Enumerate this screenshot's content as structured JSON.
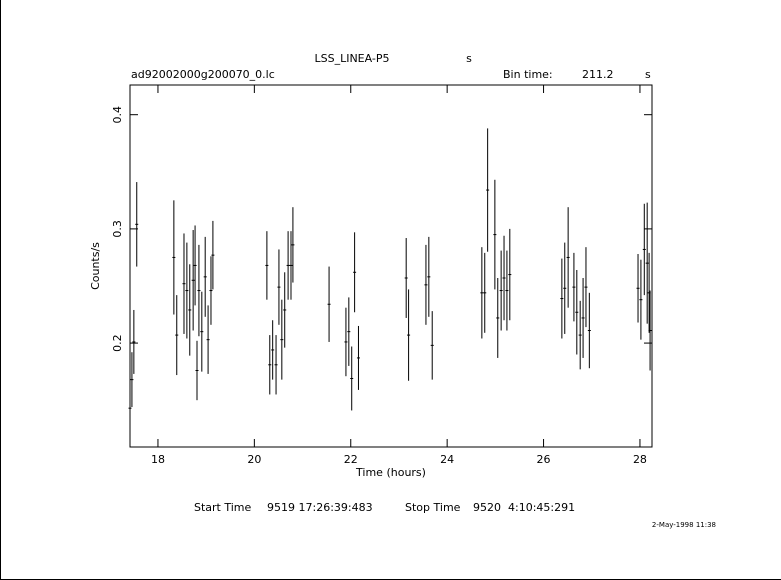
{
  "chart_data": {
    "type": "errorbar",
    "title": "LSS_LINEA-P5",
    "title_unit": "s",
    "file_name": "ad92002000g200070_0.lc",
    "bin_time_label": "Bin time:",
    "bin_time": 211.2,
    "bin_time_unit": "s",
    "xlabel": "Time (hours)",
    "ylabel": "Counts/s",
    "start_label": "Start Time",
    "start_time": "9519 17:26:39:483",
    "stop_label": "Stop Time",
    "stop_time": "9520  4:10:45:291",
    "date": "2-May-1998 11:38",
    "color": "#000000",
    "xlim": [
      17.42,
      28.25
    ],
    "xticks": [
      18,
      20,
      22,
      24,
      26,
      28
    ],
    "ylim": [
      0.109,
      0.426
    ],
    "yticks": [
      0.2,
      0.3,
      0.4
    ],
    "x": [
      17.42,
      17.46,
      17.5,
      17.56,
      18.33,
      18.39,
      18.54,
      18.6,
      18.66,
      18.73,
      18.77,
      18.81,
      18.85,
      18.91,
      18.98,
      19.04,
      19.1,
      19.14,
      20.26,
      20.32,
      20.38,
      20.45,
      20.51,
      20.57,
      20.63,
      20.7,
      20.76,
      20.8,
      21.55,
      21.9,
      21.96,
      22.02,
      22.08,
      22.16,
      23.15,
      23.2,
      23.56,
      23.62,
      23.69,
      24.72,
      24.78,
      24.84,
      24.99,
      25.05,
      25.12,
      25.18,
      25.24,
      25.3,
      26.38,
      26.44,
      26.51,
      26.63,
      26.69,
      26.76,
      26.82,
      26.88,
      26.95,
      27.96,
      28.02,
      28.09,
      28.15,
      28.19,
      28.21
    ],
    "values": [
      0.143,
      0.168,
      0.201,
      0.304,
      0.275,
      0.207,
      0.252,
      0.246,
      0.229,
      0.255,
      0.268,
      0.176,
      0.246,
      0.21,
      0.258,
      0.203,
      0.246,
      0.277,
      0.268,
      0.181,
      0.194,
      0.181,
      0.249,
      0.203,
      0.229,
      0.268,
      0.268,
      0.286,
      0.234,
      0.201,
      0.21,
      0.169,
      0.262,
      0.187,
      0.257,
      0.207,
      0.251,
      0.258,
      0.198,
      0.244,
      0.244,
      0.334,
      0.295,
      0.222,
      0.246,
      0.257,
      0.246,
      0.26,
      0.239,
      0.248,
      0.275,
      0.249,
      0.227,
      0.207,
      0.222,
      0.249,
      0.211,
      0.248,
      0.238,
      0.282,
      0.27,
      0.244,
      0.211
    ],
    "errors": [
      0.022,
      0.024,
      0.028,
      0.037,
      0.05,
      0.035,
      0.044,
      0.042,
      0.04,
      0.044,
      0.035,
      0.026,
      0.04,
      0.035,
      0.035,
      0.03,
      0.03,
      0.03,
      0.03,
      0.026,
      0.026,
      0.026,
      0.033,
      0.035,
      0.033,
      0.03,
      0.03,
      0.033,
      0.033,
      0.03,
      0.03,
      0.028,
      0.035,
      0.028,
      0.035,
      0.04,
      0.035,
      0.035,
      0.03,
      0.04,
      0.035,
      0.054,
      0.048,
      0.035,
      0.035,
      0.037,
      0.035,
      0.04,
      0.035,
      0.04,
      0.044,
      0.03,
      0.037,
      0.03,
      0.035,
      0.035,
      0.033,
      0.03,
      0.035,
      0.04,
      0.053,
      0.035,
      0.035
    ]
  }
}
